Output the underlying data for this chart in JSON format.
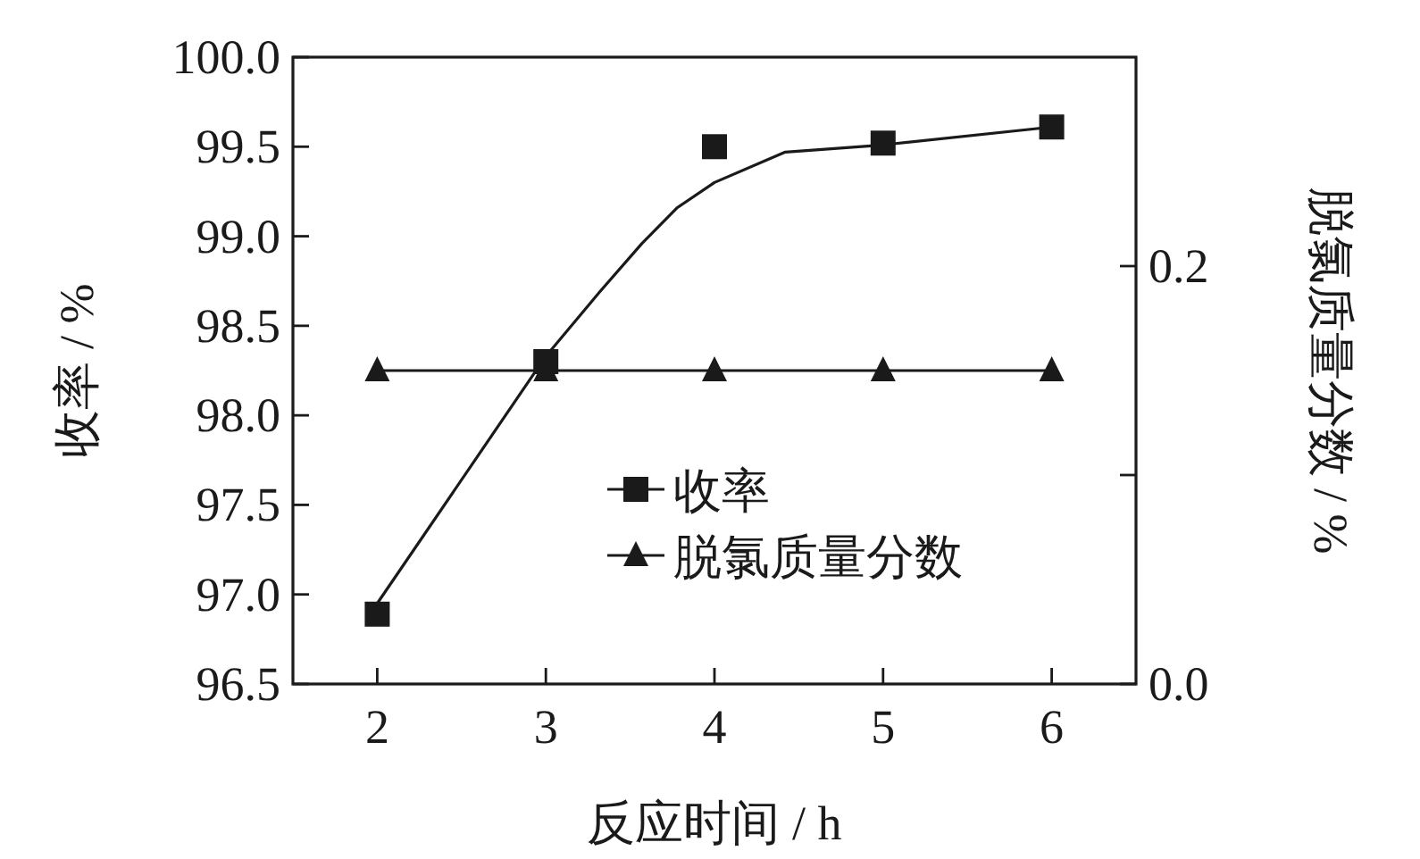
{
  "chart_data": {
    "type": "line",
    "xlabel": "反应时间 / h",
    "ylabel": "收率 / %",
    "y2label": "脱氯质量分数 / %",
    "x": [
      2,
      3,
      4,
      5,
      6
    ],
    "xlim": [
      1.5,
      6.5
    ],
    "xticks": [
      2,
      3,
      4,
      5,
      6
    ],
    "ylim": [
      96.5,
      100.0
    ],
    "yticks": [
      {
        "value": 96.5,
        "label": "96.5"
      },
      {
        "value": 97.0,
        "label": "97.0"
      },
      {
        "value": 97.5,
        "label": "97.5"
      },
      {
        "value": 98.0,
        "label": "98.0"
      },
      {
        "value": 98.5,
        "label": "98.5"
      },
      {
        "value": 99.0,
        "label": "99.0"
      },
      {
        "value": 99.5,
        "label": "99.5"
      },
      {
        "value": 100.0,
        "label": "100.0"
      }
    ],
    "y2lim": [
      0.0,
      0.3
    ],
    "y2ticks": [
      {
        "value": 0.0,
        "label": "0.0"
      },
      {
        "value": 0.1,
        "label": null
      },
      {
        "value": 0.2,
        "label": "0.2"
      }
    ],
    "grid": false,
    "legend": "bottom right",
    "series": [
      {
        "name": "收率",
        "type": "scatter",
        "marker": "square",
        "color": "#1a1a1a",
        "values": [
          96.89,
          98.3,
          99.5,
          99.52,
          99.61
        ]
      },
      {
        "marker": "none",
        "color": "#1a1a1a",
        "x": [
          2,
          3,
          3.32,
          3.57,
          3.78,
          4.0,
          4.42,
          5,
          6
        ],
        "values": [
          96.95,
          98.33,
          98.69,
          98.96,
          99.16,
          99.3,
          99.47,
          99.51,
          99.61
        ]
      },
      {
        "name": "脱氯质量分数",
        "marker": "triangle",
        "axis": "y2",
        "color": "#1a1a1a",
        "values": [
          0.15,
          0.15,
          0.15,
          0.15,
          0.15
        ]
      }
    ]
  }
}
